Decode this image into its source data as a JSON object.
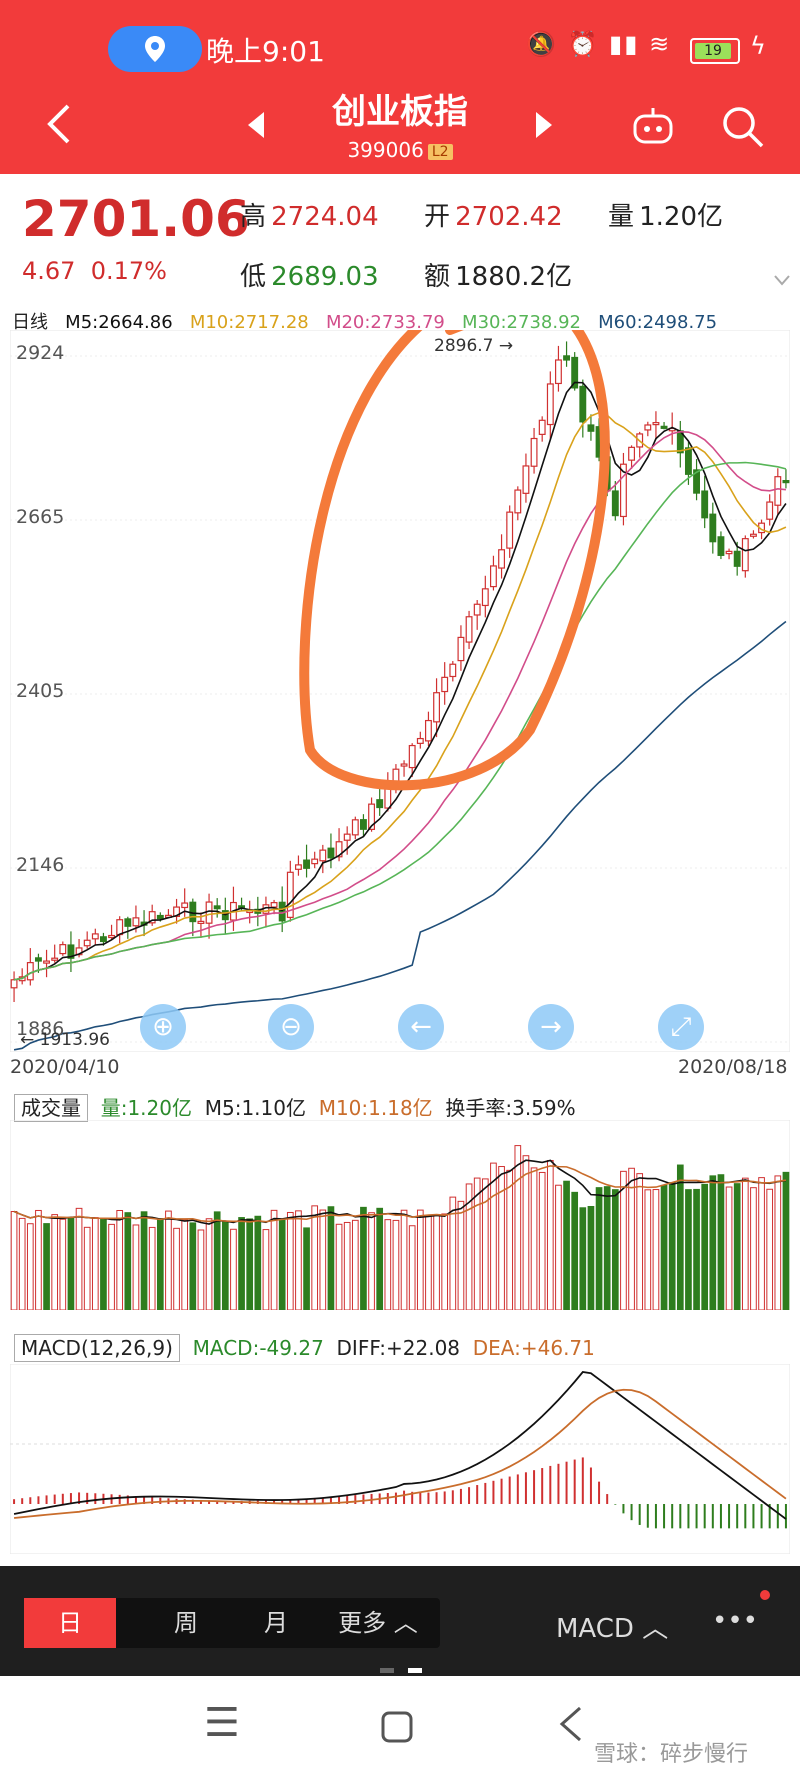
{
  "status_bar": {
    "time": "晚上9:01",
    "battery": "19"
  },
  "header": {
    "title": "创业板指",
    "code": "399006",
    "level": "L2"
  },
  "quote": {
    "price": "2701.06",
    "change": "4.67",
    "change_pct": "0.17%",
    "high_label": "高",
    "high": "2724.04",
    "open_label": "开",
    "open": "2702.42",
    "vol_label": "量",
    "vol": "1.20亿",
    "low_label": "低",
    "low": "2689.03",
    "amount_label": "额",
    "amount": "1880.2亿"
  },
  "kline": {
    "period": "日线",
    "ma5": "M5:2664.86",
    "ma10": "M10:2717.28",
    "ma20": "M20:2733.79",
    "ma30": "M30:2738.92",
    "ma60": "M60:2498.75",
    "y_ticks": [
      "2924",
      "2665",
      "2405",
      "2146",
      "1886"
    ],
    "high_marker": "2896.7",
    "low_marker": "1913.96",
    "start_date": "2020/04/10",
    "end_date": "2020/08/18",
    "colors": {
      "ma5": "#111111",
      "ma10": "#d9a21b",
      "ma20": "#d24d8a",
      "ma30": "#57b557",
      "ma60": "#1f4e79",
      "up": "#d03030",
      "down": "#2e7d1e"
    }
  },
  "volume": {
    "label": "成交量",
    "vol": "量:1.20亿",
    "m5": "M5:1.10亿",
    "m10": "M10:1.18亿",
    "turnover": "换手率:3.59%"
  },
  "macd": {
    "label": "MACD(12,26,9)",
    "macd": "MACD:-49.27",
    "diff": "DIFF:+22.08",
    "dea": "DEA:+46.71"
  },
  "bottom_tabs": {
    "day": "日",
    "week": "周",
    "month": "月",
    "more": "更多 ︿",
    "indicator": "MACD ︿",
    "menu": "•••"
  },
  "watermark": "雪球：碎步慢行"
}
